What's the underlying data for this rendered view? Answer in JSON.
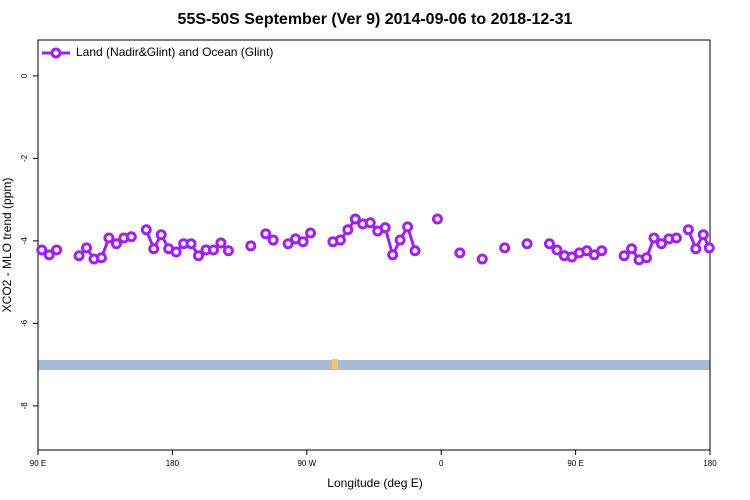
{
  "chart_data": {
    "type": "line",
    "title": "55S-50S September (Ver 9)   2014-09-06 to 2018-12-31",
    "x_label": "Longitude (deg E)",
    "y_label": "XCO2 - MLO trend (ppm)",
    "x": [
      92.5,
      97.5,
      102.5,
      110,
      117.5,
      122.5,
      127.5,
      132.5,
      137.5,
      142.5,
      147.5,
      152.5,
      157.5,
      162.5,
      167.5,
      172.5,
      177.5,
      182.5,
      187.5,
      192.5,
      197.5,
      202.5,
      207.5,
      212.5,
      217.5,
      222.5,
      232.5,
      237.5,
      242.5,
      247.5,
      252.5,
      257.5,
      262.5,
      267.5,
      272.5,
      280,
      287.5,
      292.5,
      297.5,
      302.5,
      307.5,
      312.5,
      317.5,
      322.5,
      327.5,
      332.5,
      337.5,
      342.5,
      350,
      357.5,
      365,
      372.5,
      380,
      387.5,
      395,
      402.5,
      410,
      417.5,
      425,
      432.5,
      437.5,
      442.5,
      447.5,
      452.5,
      457.5,
      462.5,
      467.5,
      475,
      482.5,
      487.5,
      492.5,
      497.5,
      502.5,
      507.5,
      512.5,
      517.5,
      521.5,
      525.5,
      530.5,
      535.5,
      539.5
    ],
    "series": [
      {
        "name": "Land (Nadir&Glint) and Ocean (Glint)",
        "color": "#a020f0",
        "values": [
          -4.22,
          -4.34,
          -4.22,
          null,
          -4.36,
          -4.17,
          -4.44,
          -4.41,
          -3.93,
          -4.07,
          -3.93,
          -3.9,
          null,
          -3.73,
          -4.19,
          -3.85,
          -4.19,
          -4.27,
          -4.07,
          -4.07,
          -4.36,
          -4.22,
          -4.22,
          -4.05,
          -4.24,
          null,
          -4.12,
          null,
          -3.83,
          -3.98,
          null,
          -4.07,
          -3.95,
          -4.02,
          -3.81,
          null,
          -4.02,
          -3.98,
          -3.73,
          -3.47,
          -3.59,
          -3.56,
          -3.76,
          -3.68,
          -4.34,
          -3.98,
          -3.66,
          -4.24,
          null,
          -3.47,
          null,
          -4.29,
          null,
          -4.44,
          null,
          -4.17,
          null,
          -4.07,
          null,
          -4.07,
          -4.22,
          -4.36,
          -4.39,
          -4.29,
          -4.24,
          -4.34,
          -4.24,
          null,
          -4.36,
          -4.19,
          -4.46,
          -4.41,
          -3.93,
          -4.07,
          -3.95,
          -3.93,
          null,
          -3.73,
          -4.19,
          -3.85,
          -4.17
        ]
      }
    ],
    "xlim": [
      90,
      540
    ],
    "xticks": [
      {
        "value": 90,
        "label": "90 E"
      },
      180,
      {
        "value": 270,
        "label": "90 W"
      },
      {
        "value": 360,
        "label": "0"
      },
      {
        "value": 450,
        "label": "90 E"
      },
      {
        "value": 540,
        "label": "180"
      }
    ],
    "ylim": [
      -9.07,
      0.87
    ],
    "yticks": [
      0,
      -2,
      -4,
      -6,
      -8
    ],
    "legend": "top-left"
  }
}
